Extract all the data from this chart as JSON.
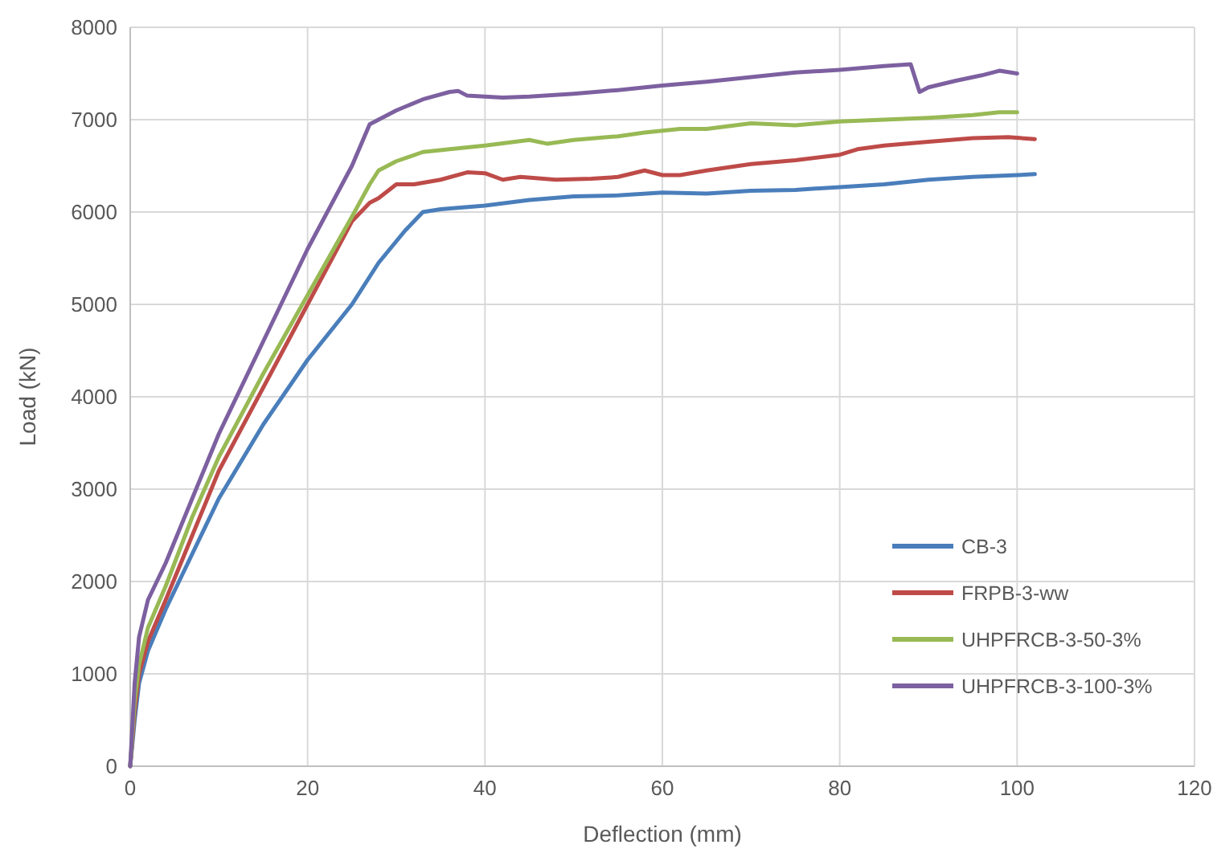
{
  "chart_data": {
    "type": "line",
    "xlabel": "Deflection (mm)",
    "ylabel": "Load (kN)",
    "xlim": [
      0,
      120
    ],
    "xticks": [
      0,
      20,
      40,
      60,
      80,
      100,
      120
    ],
    "ylim": [
      0,
      8000
    ],
    "yticks": [
      0,
      1000,
      2000,
      3000,
      4000,
      5000,
      6000,
      7000,
      8000
    ],
    "grid": true,
    "legend": "bottom right",
    "marker": "none",
    "line_style": "solid",
    "series": [
      {
        "name": "CB-3",
        "color": "#4a7ebb",
        "x": [
          0,
          0.5,
          1,
          2,
          4,
          7,
          10,
          15,
          20,
          25,
          28,
          31,
          33,
          35,
          40,
          45,
          50,
          55,
          60,
          65,
          70,
          75,
          80,
          85,
          90,
          95,
          100,
          102
        ],
        "values": [
          0,
          500,
          900,
          1250,
          1700,
          2300,
          2900,
          3700,
          4400,
          5000,
          5450,
          5800,
          6000,
          6030,
          6070,
          6130,
          6170,
          6180,
          6210,
          6200,
          6230,
          6240,
          6270,
          6300,
          6350,
          6380,
          6400,
          6410
        ]
      },
      {
        "name": "FRPB-3-ww",
        "color": "#be4b48",
        "x": [
          0,
          0.5,
          1,
          2,
          4,
          7,
          10,
          15,
          20,
          25,
          27,
          28,
          30,
          32,
          35,
          38,
          40,
          42,
          44,
          48,
          52,
          55,
          58,
          60,
          62,
          65,
          70,
          75,
          80,
          82,
          85,
          90,
          95,
          99,
          102
        ],
        "values": [
          0,
          600,
          1000,
          1350,
          1800,
          2500,
          3200,
          4100,
          5000,
          5900,
          6100,
          6150,
          6300,
          6300,
          6350,
          6430,
          6420,
          6350,
          6380,
          6350,
          6360,
          6380,
          6450,
          6400,
          6400,
          6450,
          6520,
          6560,
          6620,
          6680,
          6720,
          6760,
          6800,
          6810,
          6790
        ]
      },
      {
        "name": "UHPFRCB-3-50-3%",
        "color": "#98b954",
        "x": [
          0,
          0.5,
          1,
          2,
          4,
          7,
          10,
          15,
          20,
          25,
          27,
          28,
          30,
          33,
          36,
          40,
          45,
          47,
          50,
          55,
          58,
          62,
          65,
          70,
          75,
          80,
          85,
          90,
          95,
          98,
          100
        ],
        "values": [
          0,
          700,
          1100,
          1500,
          1950,
          2700,
          3350,
          4250,
          5100,
          5950,
          6300,
          6450,
          6550,
          6650,
          6680,
          6720,
          6780,
          6740,
          6780,
          6820,
          6860,
          6900,
          6900,
          6960,
          6940,
          6980,
          7000,
          7020,
          7050,
          7080,
          7080
        ]
      },
      {
        "name": "UHPFRCB-3-100-3%",
        "color": "#7d60a0",
        "x": [
          0,
          0.5,
          1,
          2,
          4,
          7,
          10,
          15,
          20,
          25,
          27,
          30,
          33,
          36,
          37,
          38,
          42,
          45,
          50,
          55,
          60,
          65,
          70,
          75,
          80,
          85,
          88,
          89,
          90,
          93,
          96,
          98,
          100
        ],
        "values": [
          0,
          900,
          1400,
          1800,
          2200,
          2900,
          3600,
          4600,
          5600,
          6500,
          6950,
          7100,
          7220,
          7300,
          7310,
          7260,
          7240,
          7250,
          7280,
          7320,
          7370,
          7410,
          7460,
          7510,
          7540,
          7580,
          7600,
          7300,
          7350,
          7420,
          7480,
          7530,
          7500
        ]
      }
    ]
  }
}
